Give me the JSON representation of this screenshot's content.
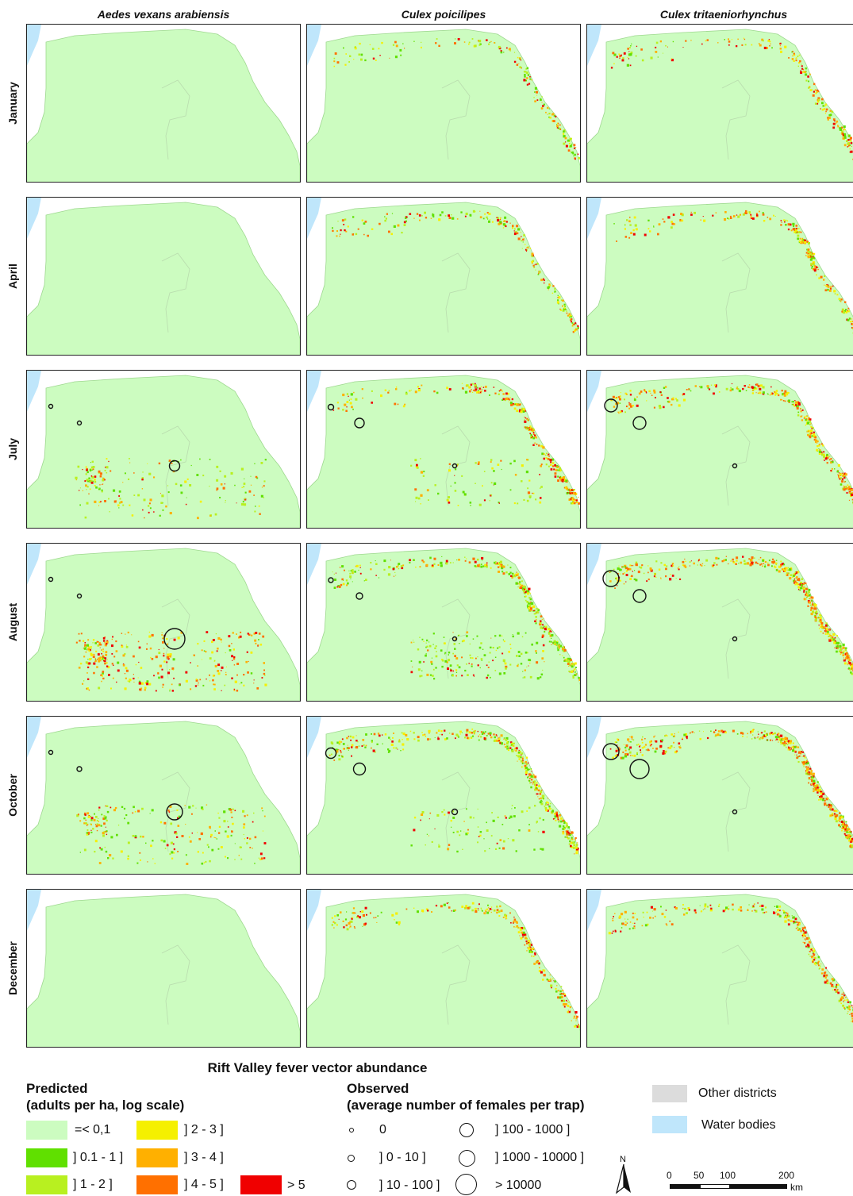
{
  "columns": [
    {
      "name": "Aedes vexans arabiensis"
    },
    {
      "name": "Culex poicilipes"
    },
    {
      "name": "Culex tritaeniorhynchus"
    }
  ],
  "rows": [
    {
      "month": "January"
    },
    {
      "month": "April"
    },
    {
      "month": "July"
    },
    {
      "month": "August"
    },
    {
      "month": "October"
    },
    {
      "month": "December"
    }
  ],
  "legend": {
    "title": "Rift Valley fever vector abundance",
    "predicted_title_line1": "Predicted",
    "predicted_title_line2": "(adults per ha, log scale)",
    "predicted_classes": [
      {
        "label": "=< 0,1",
        "color": "#ccfcc0"
      },
      {
        "label": "] 0.1 - 1 ]",
        "color": "#60e000"
      },
      {
        "label": "] 1 - 2 ]",
        "color": "#b8f020"
      },
      {
        "label": "] 2 - 3 ]",
        "color": "#f5f000"
      },
      {
        "label": "] 3 - 4 ]",
        "color": "#ffb000"
      },
      {
        "label": "] 4 - 5 ]",
        "color": "#ff7000"
      },
      {
        "label": "> 5",
        "color": "#f00000"
      }
    ],
    "observed_title_line1": "Observed",
    "observed_title_line2": "(average number of females per trap)",
    "observed_classes": [
      {
        "label": "0"
      },
      {
        "label": "] 0 - 10 ]"
      },
      {
        "label": "] 10 - 100 ]"
      },
      {
        "label": "] 100 - 1000 ]"
      },
      {
        "label": "] 1000 - 10000 ]"
      },
      {
        "label": "> 10000"
      }
    ],
    "other_districts": {
      "label": "Other districts",
      "color": "#dcdcdc"
    },
    "water_bodies": {
      "label": "Water bodies",
      "color": "#bfe6fb"
    },
    "north_label": "N",
    "scale": {
      "ticks": [
        "0",
        "50",
        "100",
        "200"
      ],
      "unit": "km"
    }
  },
  "colors": {
    "region": "#ccfcc0",
    "outline": "#aaaaaa",
    "districts": "#dcdcdc",
    "water": "#bfe6fb"
  }
}
